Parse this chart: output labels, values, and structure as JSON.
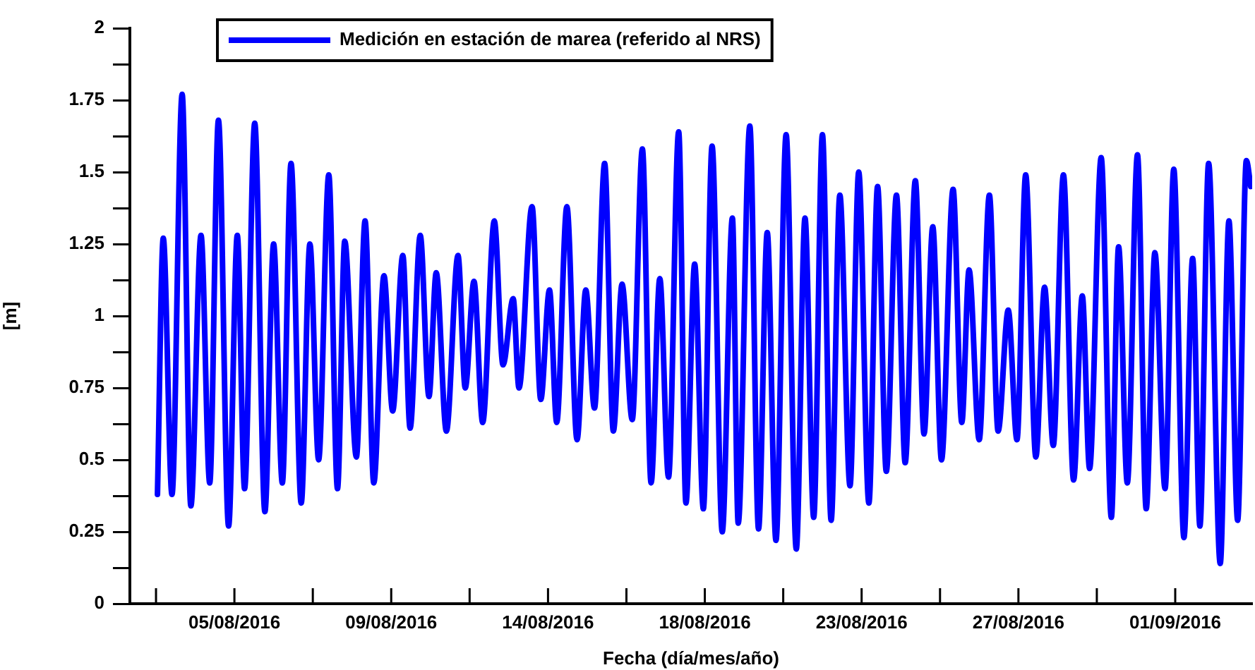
{
  "chart_data": {
    "type": "line",
    "xlabel": "Fecha (día/mes/año)",
    "ylabel": "[m]",
    "xlim": [
      "2016-08-02T00:00",
      "2016-09-03T05:00"
    ],
    "ylim": [
      0,
      2
    ],
    "xticks": [
      {
        "value": "2016-08-02T18:00",
        "label": null
      },
      {
        "value": "2016-08-05T00:00",
        "label": "05/08/2016"
      },
      {
        "value": "2016-08-07T06:00",
        "label": null
      },
      {
        "value": "2016-08-09T12:00",
        "label": "09/08/2016"
      },
      {
        "value": "2016-08-11T18:00",
        "label": null
      },
      {
        "value": "2016-08-14T00:00",
        "label": "14/08/2016"
      },
      {
        "value": "2016-08-16T06:00",
        "label": null
      },
      {
        "value": "2016-08-18T12:00",
        "label": "18/08/2016"
      },
      {
        "value": "2016-08-20T18:00",
        "label": null
      },
      {
        "value": "2016-08-23T00:00",
        "label": "23/08/2016"
      },
      {
        "value": "2016-08-25T06:00",
        "label": null
      },
      {
        "value": "2016-08-27T12:00",
        "label": "27/08/2016"
      },
      {
        "value": "2016-08-29T18:00",
        "label": null
      },
      {
        "value": "2016-09-01T00:00",
        "label": "01/09/2016"
      }
    ],
    "yticks": [
      0,
      {
        "value": 0.125,
        "label": null
      },
      0.25,
      {
        "value": 0.375,
        "label": null
      },
      0.5,
      {
        "value": 0.625,
        "label": null
      },
      0.75,
      {
        "value": 0.875,
        "label": null
      },
      1,
      {
        "value": 1.125,
        "label": null
      },
      1.25,
      {
        "value": 1.375,
        "label": null
      },
      1.5,
      {
        "value": 1.625,
        "label": null
      },
      1.75,
      {
        "value": 1.875,
        "label": null
      },
      2
    ],
    "grid": false,
    "legend": "top left",
    "marker": "none",
    "line_style": "solid",
    "series": [
      {
        "name": "Medición en estación de marea (referido al NRS)",
        "color": "#0000ff",
        "x": [
          "2016-08-02T19:00",
          "2016-08-02T23:00",
          "2016-08-03T05:00",
          "2016-08-03T12:00",
          "2016-08-03T18:00",
          "2016-08-04T01:00",
          "2016-08-04T07:00",
          "2016-08-04T13:00",
          "2016-08-04T20:00",
          "2016-08-05T02:00",
          "2016-08-05T07:00",
          "2016-08-05T14:00",
          "2016-08-05T21:00",
          "2016-08-06T03:00",
          "2016-08-06T09:00",
          "2016-08-06T15:00",
          "2016-08-06T22:00",
          "2016-08-07T04:00",
          "2016-08-07T10:00",
          "2016-08-07T17:00",
          "2016-08-07T23:00",
          "2016-08-08T04:00",
          "2016-08-08T12:00",
          "2016-08-08T18:00",
          "2016-08-09T00:00",
          "2016-08-09T07:00",
          "2016-08-09T13:00",
          "2016-08-09T20:00",
          "2016-08-10T01:00",
          "2016-08-10T08:00",
          "2016-08-10T14:00",
          "2016-08-10T19:00",
          "2016-08-11T02:00",
          "2016-08-11T10:00",
          "2016-08-11T15:00",
          "2016-08-11T21:00",
          "2016-08-12T03:00",
          "2016-08-12T11:00",
          "2016-08-12T17:00",
          "2016-08-13T00:00",
          "2016-08-13T04:00",
          "2016-08-13T13:00",
          "2016-08-13T19:00",
          "2016-08-14T01:00",
          "2016-08-14T06:00",
          "2016-08-14T13:00",
          "2016-08-14T20:00",
          "2016-08-15T02:00",
          "2016-08-15T08:00",
          "2016-08-15T15:00",
          "2016-08-15T21:00",
          "2016-08-16T03:00",
          "2016-08-16T10:00",
          "2016-08-16T17:00",
          "2016-08-16T23:00",
          "2016-08-17T05:00",
          "2016-08-17T11:00",
          "2016-08-17T18:00",
          "2016-08-17T23:00",
          "2016-08-18T05:00",
          "2016-08-18T11:00",
          "2016-08-18T17:00",
          "2016-08-19T00:00",
          "2016-08-19T07:00",
          "2016-08-19T11:00",
          "2016-08-19T19:00",
          "2016-08-20T01:00",
          "2016-08-20T07:00",
          "2016-08-20T13:00",
          "2016-08-20T20:00",
          "2016-08-21T03:00",
          "2016-08-21T09:00",
          "2016-08-21T15:00",
          "2016-08-21T21:00",
          "2016-08-22T03:00",
          "2016-08-22T09:00",
          "2016-08-22T16:00",
          "2016-08-22T22:00",
          "2016-08-23T05:00",
          "2016-08-23T11:00",
          "2016-08-23T17:00",
          "2016-08-24T00:00",
          "2016-08-24T06:00",
          "2016-08-24T13:00",
          "2016-08-24T19:00",
          "2016-08-25T01:00",
          "2016-08-25T07:00",
          "2016-08-25T15:00",
          "2016-08-25T21:00",
          "2016-08-26T02:00",
          "2016-08-26T09:00",
          "2016-08-26T16:00",
          "2016-08-26T22:00",
          "2016-08-27T05:00",
          "2016-08-27T11:00",
          "2016-08-27T17:00",
          "2016-08-28T00:00",
          "2016-08-28T06:00",
          "2016-08-28T12:00",
          "2016-08-28T19:00",
          "2016-08-29T02:00",
          "2016-08-29T08:00",
          "2016-08-29T13:00",
          "2016-08-29T21:00",
          "2016-08-30T04:00",
          "2016-08-30T09:00",
          "2016-08-30T15:00",
          "2016-08-30T22:00",
          "2016-08-31T04:00",
          "2016-08-31T10:00",
          "2016-08-31T17:00",
          "2016-08-31T23:00",
          "2016-09-01T06:00",
          "2016-09-01T12:00",
          "2016-09-01T17:00",
          "2016-09-01T23:00",
          "2016-09-02T07:00",
          "2016-09-02T13:00",
          "2016-09-02T19:00",
          "2016-09-03T01:00",
          "2016-09-03T04:00"
        ],
        "values": [
          0.38,
          1.27,
          0.38,
          1.77,
          0.34,
          1.28,
          0.42,
          1.68,
          0.27,
          1.28,
          0.4,
          1.67,
          0.32,
          1.25,
          0.42,
          1.53,
          0.35,
          1.25,
          0.5,
          1.49,
          0.4,
          1.26,
          0.51,
          1.33,
          0.42,
          1.14,
          0.67,
          1.21,
          0.61,
          1.28,
          0.72,
          1.15,
          0.6,
          1.21,
          0.75,
          1.12,
          0.63,
          1.33,
          0.83,
          1.06,
          0.75,
          1.38,
          0.71,
          1.09,
          0.63,
          1.38,
          0.57,
          1.09,
          0.68,
          1.53,
          0.6,
          1.11,
          0.64,
          1.58,
          0.42,
          1.13,
          0.44,
          1.64,
          0.35,
          1.18,
          0.33,
          1.59,
          0.25,
          1.34,
          0.28,
          1.66,
          0.26,
          1.29,
          0.22,
          1.63,
          0.19,
          1.34,
          0.3,
          1.63,
          0.29,
          1.42,
          0.41,
          1.5,
          0.35,
          1.45,
          0.46,
          1.42,
          0.49,
          1.47,
          0.59,
          1.31,
          0.5,
          1.44,
          0.63,
          1.16,
          0.57,
          1.42,
          0.6,
          1.02,
          0.57,
          1.49,
          0.51,
          1.1,
          0.55,
          1.49,
          0.43,
          1.07,
          0.47,
          1.55,
          0.3,
          1.24,
          0.42,
          1.56,
          0.33,
          1.22,
          0.4,
          1.51,
          0.23,
          1.2,
          0.27,
          1.53,
          0.14,
          1.33,
          0.29,
          1.54,
          1.45
        ]
      }
    ]
  }
}
